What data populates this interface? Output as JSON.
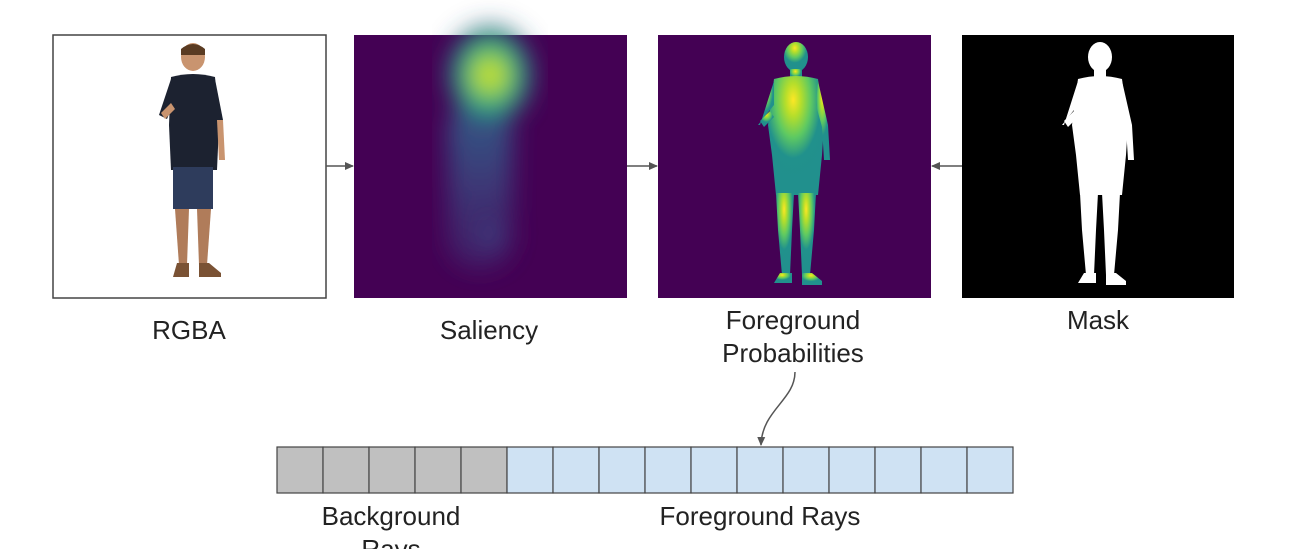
{
  "panels": {
    "rgba": {
      "label": "RGBA"
    },
    "saliency": {
      "label": "Saliency"
    },
    "foreground": {
      "label_line1": "Foreground",
      "label_line2": "Probabilities"
    },
    "mask": {
      "label": "Mask"
    }
  },
  "ray_strip": {
    "background_count": 5,
    "foreground_count": 11,
    "background_label_line1": "Background",
    "background_label_line2": "Rays",
    "foreground_label": "Foreground Rays"
  },
  "colors": {
    "viridis_dark": "#440154",
    "viridis_teal": "#21918c",
    "viridis_yellow": "#fde725",
    "background_ray": "#c0c0c0",
    "foreground_ray": "#cfe2f3",
    "arrow": "#555555"
  }
}
